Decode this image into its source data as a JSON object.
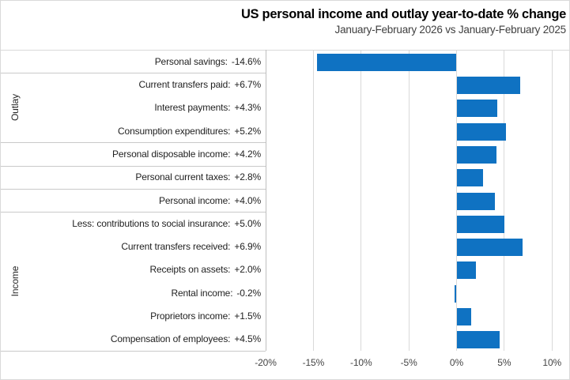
{
  "header": {
    "title": "US personal income and outlay year-to-date % change",
    "subtitle": "January-February 2026 vs January-February 2025"
  },
  "chart_data": {
    "type": "bar",
    "orientation": "horizontal",
    "title": "US personal income and outlay year-to-date % change",
    "subtitle": "January-February 2026 vs January-February 2025",
    "bar_color": "#0f72c2",
    "grid": true,
    "legend": false,
    "xlabel": "",
    "ylabel": "",
    "axis": {
      "min": -20,
      "max": 11.6,
      "tick_step": 5,
      "ticks": [
        {
          "value": -20,
          "label": "-20%"
        },
        {
          "value": -15,
          "label": "-15%"
        },
        {
          "value": -10,
          "label": "-10%"
        },
        {
          "value": -5,
          "label": "-5%"
        },
        {
          "value": 0,
          "label": "0%"
        },
        {
          "value": 5,
          "label": "5%"
        },
        {
          "value": 10,
          "label": "10%"
        }
      ]
    },
    "rows": [
      {
        "label": "Personal savings:",
        "value": -14.6,
        "display": "-14.6%",
        "group": ""
      },
      {
        "label": "Current transfers paid:",
        "value": 6.7,
        "display": "+6.7%",
        "group": "Outlay"
      },
      {
        "label": "Interest payments:",
        "value": 4.3,
        "display": "+4.3%",
        "group": "Outlay"
      },
      {
        "label": "Consumption expenditures:",
        "value": 5.2,
        "display": "+5.2%",
        "group": "Outlay"
      },
      {
        "label": "Personal disposable income:",
        "value": 4.2,
        "display": "+4.2%",
        "group": ""
      },
      {
        "label": "Personal current taxes:",
        "value": 2.8,
        "display": "+2.8%",
        "group": ""
      },
      {
        "label": "Personal income:",
        "value": 4.0,
        "display": "+4.0%",
        "group": ""
      },
      {
        "label": "Less: contributions to social insurance:",
        "value": 5.0,
        "display": "+5.0%",
        "group": "Income"
      },
      {
        "label": "Current transfers received:",
        "value": 6.9,
        "display": "+6.9%",
        "group": "Income"
      },
      {
        "label": "Receipts on assets:",
        "value": 2.0,
        "display": "+2.0%",
        "group": "Income"
      },
      {
        "label": "Rental income:",
        "value": -0.2,
        "display": "-0.2%",
        "group": "Income"
      },
      {
        "label": "Proprietors income:",
        "value": 1.5,
        "display": "+1.5%",
        "group": "Income"
      },
      {
        "label": "Compensation of employees:",
        "value": 4.5,
        "display": "+4.5%",
        "group": "Income"
      }
    ],
    "groups": [
      {
        "label": "Outlay",
        "start": 1,
        "end": 3
      },
      {
        "label": "Income",
        "start": 7,
        "end": 12
      }
    ]
  }
}
